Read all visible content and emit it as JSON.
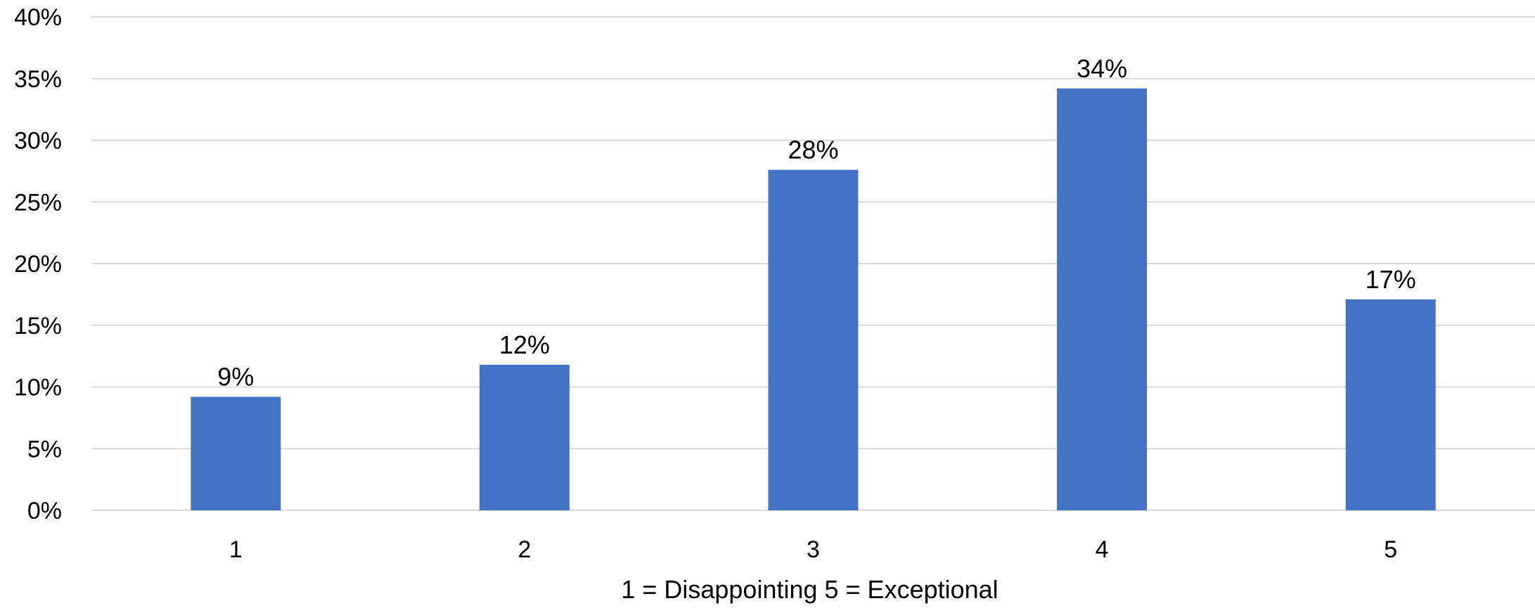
{
  "chart_data": {
    "type": "bar",
    "categories": [
      "1",
      "2",
      "3",
      "4",
      "5"
    ],
    "values": [
      9.2,
      11.8,
      27.6,
      34.2,
      17.1
    ],
    "data_labels": [
      "9%",
      "12%",
      "28%",
      "34%",
      "17%"
    ],
    "y_ticks": [
      0,
      5,
      10,
      15,
      20,
      25,
      30,
      35,
      40
    ],
    "y_tick_labels": [
      "0%",
      "5%",
      "10%",
      "15%",
      "20%",
      "25%",
      "30%",
      "35%",
      "40%"
    ],
    "ylim": [
      0,
      40
    ],
    "xlabel": "1 = Disappointing 5 = Exceptional",
    "ylabel": "",
    "title": "",
    "grid": true,
    "legend": "none",
    "bar_color": "#4472c4",
    "grid_color": "#d9d9d9"
  }
}
